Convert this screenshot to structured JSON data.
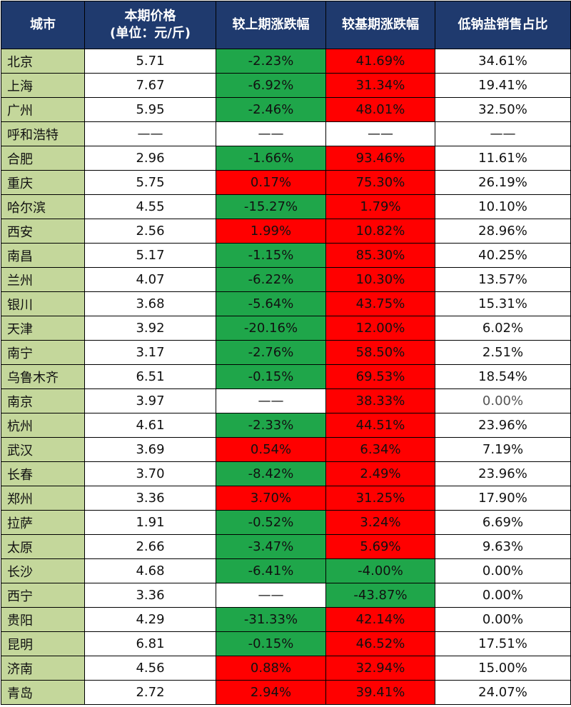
{
  "table": {
    "headers": [
      "城市",
      "本期价格\n(单位：元/斤)",
      "较上期涨跌幅",
      "较基期涨跌幅",
      "低钠盐销售占比"
    ],
    "colors": {
      "header_bg": "#1f3a6e",
      "city_bg": "#c4d79b",
      "rise": "#ff0000",
      "fall": "#1fa64a"
    },
    "rows": [
      {
        "city": "北京",
        "price": "5.71",
        "prev": "-2.23%",
        "prev_dir": "down",
        "base": "41.69%",
        "base_dir": "up",
        "share": "34.61%"
      },
      {
        "city": "上海",
        "price": "7.67",
        "prev": "-6.92%",
        "prev_dir": "down",
        "base": "31.34%",
        "base_dir": "up",
        "share": "19.41%"
      },
      {
        "city": "广州",
        "price": "5.95",
        "prev": "-2.46%",
        "prev_dir": "down",
        "base": "48.01%",
        "base_dir": "up",
        "share": "32.50%"
      },
      {
        "city": "呼和浩特",
        "price": "——",
        "prev": "——",
        "prev_dir": "none",
        "base": "——",
        "base_dir": "none",
        "share": "——"
      },
      {
        "city": "合肥",
        "price": "2.96",
        "prev": "-1.66%",
        "prev_dir": "down",
        "base": "93.46%",
        "base_dir": "up",
        "share": "11.61%"
      },
      {
        "city": "重庆",
        "price": "5.75",
        "prev": "0.17%",
        "prev_dir": "up",
        "base": "75.30%",
        "base_dir": "up",
        "share": "26.19%"
      },
      {
        "city": "哈尔滨",
        "price": "4.55",
        "prev": "-15.27%",
        "prev_dir": "down",
        "base": "1.79%",
        "base_dir": "up",
        "share": "10.10%"
      },
      {
        "city": "西安",
        "price": "2.56",
        "prev": "1.99%",
        "prev_dir": "up",
        "base": "10.82%",
        "base_dir": "up",
        "share": "28.96%"
      },
      {
        "city": "南昌",
        "price": "5.17",
        "prev": "-1.15%",
        "prev_dir": "down",
        "base": "85.30%",
        "base_dir": "up",
        "share": "40.25%"
      },
      {
        "city": "兰州",
        "price": "4.07",
        "prev": "-6.22%",
        "prev_dir": "down",
        "base": "10.30%",
        "base_dir": "up",
        "share": "13.57%"
      },
      {
        "city": "银川",
        "price": "3.68",
        "prev": "-5.64%",
        "prev_dir": "down",
        "base": "43.75%",
        "base_dir": "up",
        "share": "15.31%"
      },
      {
        "city": "天津",
        "price": "3.92",
        "prev": "-20.16%",
        "prev_dir": "down",
        "base": "12.00%",
        "base_dir": "up",
        "share": "6.02%"
      },
      {
        "city": "南宁",
        "price": "3.17",
        "prev": "-2.76%",
        "prev_dir": "down",
        "base": "58.50%",
        "base_dir": "up",
        "share": "2.51%"
      },
      {
        "city": "乌鲁木齐",
        "price": "6.51",
        "prev": "-0.15%",
        "prev_dir": "down",
        "base": "69.53%",
        "base_dir": "up",
        "share": "18.54%"
      },
      {
        "city": "南京",
        "price": "3.97",
        "prev": "——",
        "prev_dir": "none",
        "base": "38.33%",
        "base_dir": "up",
        "share": "0.00%",
        "share_muted": true
      },
      {
        "city": "杭州",
        "price": "4.61",
        "prev": "-2.33%",
        "prev_dir": "down",
        "base": "44.51%",
        "base_dir": "up",
        "share": "23.96%"
      },
      {
        "city": "武汉",
        "price": "3.69",
        "prev": "0.54%",
        "prev_dir": "up",
        "base": "6.34%",
        "base_dir": "up",
        "share": "7.19%"
      },
      {
        "city": "长春",
        "price": "3.70",
        "prev": "-8.42%",
        "prev_dir": "down",
        "base": "2.49%",
        "base_dir": "up",
        "share": "23.96%"
      },
      {
        "city": "郑州",
        "price": "3.36",
        "prev": "3.70%",
        "prev_dir": "up",
        "base": "31.25%",
        "base_dir": "up",
        "share": "17.90%"
      },
      {
        "city": "拉萨",
        "price": "1.91",
        "prev": "-0.52%",
        "prev_dir": "down",
        "base": "3.24%",
        "base_dir": "up",
        "share": "6.69%"
      },
      {
        "city": "太原",
        "price": "2.66",
        "prev": "-3.47%",
        "prev_dir": "down",
        "base": "5.69%",
        "base_dir": "up",
        "share": "9.63%"
      },
      {
        "city": "长沙",
        "price": "4.68",
        "prev": "-6.41%",
        "prev_dir": "down",
        "base": "-4.00%",
        "base_dir": "down",
        "share": "0.00%"
      },
      {
        "city": "西宁",
        "price": "3.36",
        "prev": "——",
        "prev_dir": "none",
        "base": "-43.87%",
        "base_dir": "down",
        "share": "0.00%"
      },
      {
        "city": "贵阳",
        "price": "4.29",
        "prev": "-31.33%",
        "prev_dir": "down",
        "base": "42.14%",
        "base_dir": "up",
        "share": "0.00%"
      },
      {
        "city": "昆明",
        "price": "6.81",
        "prev": "-0.15%",
        "prev_dir": "down",
        "base": "46.52%",
        "base_dir": "up",
        "share": "17.51%"
      },
      {
        "city": "济南",
        "price": "4.56",
        "prev": "0.88%",
        "prev_dir": "up",
        "base": "32.94%",
        "base_dir": "up",
        "share": "15.00%"
      },
      {
        "city": "青岛",
        "price": "2.72",
        "prev": "2.94%",
        "prev_dir": "up",
        "base": "39.41%",
        "base_dir": "up",
        "share": "24.07%"
      }
    ]
  }
}
